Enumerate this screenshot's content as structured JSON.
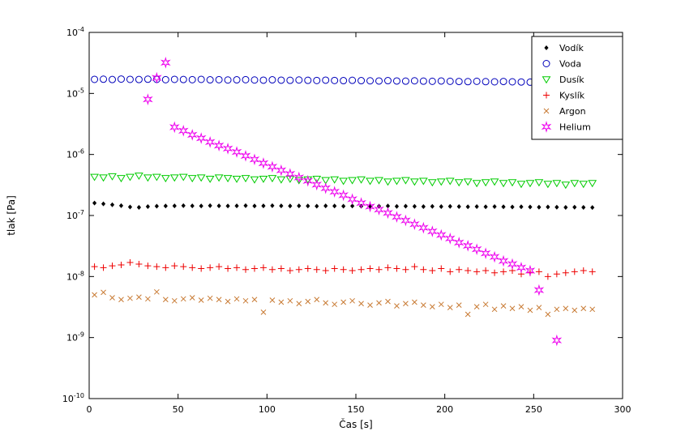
{
  "figure": {
    "background": "#ffffff",
    "border_color": "#000000"
  },
  "chart_data": {
    "type": "scatter",
    "title": "",
    "xlabel": "Čas [s]",
    "ylabel": "tlak [Pa]",
    "xlim": [
      0,
      300
    ],
    "ylim": [
      1e-10,
      0.0001
    ],
    "x_ticks": [
      0,
      50,
      100,
      150,
      200,
      250,
      300
    ],
    "y_tick_exponents": [
      -10,
      -9,
      -8,
      -7,
      -6,
      -5,
      -4
    ],
    "y_scale": "log",
    "grid": false,
    "legend_position": "top-right",
    "series": [
      {
        "name": "Vodík",
        "marker": "diamond",
        "color": "#000000",
        "x": [
          3,
          8,
          13,
          18,
          23,
          28,
          33,
          38,
          43,
          48,
          53,
          58,
          63,
          68,
          73,
          78,
          83,
          88,
          93,
          98,
          103,
          108,
          113,
          118,
          123,
          128,
          133,
          138,
          143,
          148,
          153,
          158,
          163,
          168,
          173,
          178,
          183,
          188,
          193,
          198,
          203,
          208,
          213,
          218,
          223,
          228,
          233,
          238,
          243,
          248,
          253,
          258,
          263,
          268,
          273,
          278,
          283
        ],
        "y": [
          1.6e-07,
          1.55e-07,
          1.5e-07,
          1.45e-07,
          1.38e-07,
          1.36e-07,
          1.4e-07,
          1.42e-07,
          1.43e-07,
          1.44e-07,
          1.45e-07,
          1.44e-07,
          1.43e-07,
          1.45e-07,
          1.44e-07,
          1.43e-07,
          1.44e-07,
          1.45e-07,
          1.43e-07,
          1.44e-07,
          1.45e-07,
          1.44e-07,
          1.43e-07,
          1.44e-07,
          1.43e-07,
          1.42e-07,
          1.44e-07,
          1.43e-07,
          1.42e-07,
          1.43e-07,
          1.42e-07,
          1.41e-07,
          1.42e-07,
          1.43e-07,
          1.41e-07,
          1.42e-07,
          1.41e-07,
          1.4e-07,
          1.41e-07,
          1.4e-07,
          1.41e-07,
          1.4e-07,
          1.39e-07,
          1.4e-07,
          1.39e-07,
          1.4e-07,
          1.39e-07,
          1.38e-07,
          1.39e-07,
          1.38e-07,
          1.37e-07,
          1.38e-07,
          1.37e-07,
          1.36e-07,
          1.37e-07,
          1.36e-07,
          1.35e-07
        ]
      },
      {
        "name": "Voda",
        "marker": "circle",
        "color": "#0000bb",
        "x": [
          3,
          8,
          13,
          18,
          23,
          28,
          33,
          38,
          43,
          48,
          53,
          58,
          63,
          68,
          73,
          78,
          83,
          88,
          93,
          98,
          103,
          108,
          113,
          118,
          123,
          128,
          133,
          138,
          143,
          148,
          153,
          158,
          163,
          168,
          173,
          178,
          183,
          188,
          193,
          198,
          203,
          208,
          213,
          218,
          223,
          228,
          233,
          238,
          243,
          248,
          253,
          258,
          263,
          268,
          273,
          278,
          283
        ],
        "y": [
          1.7e-05,
          1.71e-05,
          1.69e-05,
          1.72e-05,
          1.7e-05,
          1.69e-05,
          1.71e-05,
          1.7e-05,
          1.68e-05,
          1.7e-05,
          1.69e-05,
          1.68e-05,
          1.7e-05,
          1.67e-05,
          1.68e-05,
          1.66e-05,
          1.67e-05,
          1.68e-05,
          1.66e-05,
          1.65e-05,
          1.67e-05,
          1.65e-05,
          1.64e-05,
          1.66e-05,
          1.64e-05,
          1.63e-05,
          1.65e-05,
          1.63e-05,
          1.62e-05,
          1.64e-05,
          1.62e-05,
          1.61e-05,
          1.6e-05,
          1.62e-05,
          1.6e-05,
          1.59e-05,
          1.61e-05,
          1.59e-05,
          1.58e-05,
          1.6e-05,
          1.58e-05,
          1.57e-05,
          1.56e-05,
          1.58e-05,
          1.56e-05,
          1.55e-05,
          1.57e-05,
          1.55e-05,
          1.54e-05,
          1.53e-05,
          1.55e-05,
          1.53e-05,
          1.52e-05,
          1.54e-05,
          1.52e-05,
          1.51e-05,
          1.52e-05
        ]
      },
      {
        "name": "Dusík",
        "marker": "triangle-down",
        "color": "#00cc00",
        "x": [
          3,
          8,
          13,
          18,
          23,
          28,
          33,
          38,
          43,
          48,
          53,
          58,
          63,
          68,
          73,
          78,
          83,
          88,
          93,
          98,
          103,
          108,
          113,
          118,
          123,
          128,
          133,
          138,
          143,
          148,
          153,
          158,
          163,
          168,
          173,
          178,
          183,
          188,
          193,
          198,
          203,
          208,
          213,
          218,
          223,
          228,
          233,
          238,
          243,
          248,
          253,
          258,
          263,
          268,
          273,
          278,
          283
        ],
        "y": [
          4.3e-07,
          4.2e-07,
          4.4e-07,
          4.1e-07,
          4.3e-07,
          4.5e-07,
          4.2e-07,
          4.3e-07,
          4.1e-07,
          4.2e-07,
          4.3e-07,
          4.1e-07,
          4.2e-07,
          4e-07,
          4.2e-07,
          4.1e-07,
          4e-07,
          4.1e-07,
          3.9e-07,
          4e-07,
          4.1e-07,
          3.9e-07,
          4e-07,
          3.8e-07,
          3.9e-07,
          4e-07,
          3.8e-07,
          3.9e-07,
          3.7e-07,
          3.8e-07,
          3.9e-07,
          3.7e-07,
          3.8e-07,
          3.6e-07,
          3.7e-07,
          3.8e-07,
          3.6e-07,
          3.7e-07,
          3.5e-07,
          3.6e-07,
          3.7e-07,
          3.5e-07,
          3.6e-07,
          3.4e-07,
          3.5e-07,
          3.6e-07,
          3.4e-07,
          3.5e-07,
          3.3e-07,
          3.4e-07,
          3.5e-07,
          3.3e-07,
          3.4e-07,
          3.2e-07,
          3.4e-07,
          3.3e-07,
          3.4e-07
        ]
      },
      {
        "name": "Kyslík",
        "marker": "plus",
        "color": "#ee0000",
        "x": [
          3,
          8,
          13,
          18,
          23,
          28,
          33,
          38,
          43,
          48,
          53,
          58,
          63,
          68,
          73,
          78,
          83,
          88,
          93,
          98,
          103,
          108,
          113,
          118,
          123,
          128,
          133,
          138,
          143,
          148,
          153,
          158,
          163,
          168,
          173,
          178,
          183,
          188,
          193,
          198,
          203,
          208,
          213,
          218,
          223,
          228,
          233,
          238,
          243,
          248,
          253,
          258,
          263,
          268,
          273,
          278,
          283
        ],
        "y": [
          1.45e-08,
          1.4e-08,
          1.5e-08,
          1.55e-08,
          1.7e-08,
          1.6e-08,
          1.5e-08,
          1.45e-08,
          1.4e-08,
          1.5e-08,
          1.45e-08,
          1.4e-08,
          1.35e-08,
          1.4e-08,
          1.45e-08,
          1.35e-08,
          1.4e-08,
          1.3e-08,
          1.35e-08,
          1.4e-08,
          1.3e-08,
          1.35e-08,
          1.25e-08,
          1.3e-08,
          1.35e-08,
          1.3e-08,
          1.25e-08,
          1.35e-08,
          1.3e-08,
          1.25e-08,
          1.3e-08,
          1.35e-08,
          1.3e-08,
          1.4e-08,
          1.35e-08,
          1.3e-08,
          1.45e-08,
          1.3e-08,
          1.25e-08,
          1.35e-08,
          1.2e-08,
          1.3e-08,
          1.25e-08,
          1.2e-08,
          1.25e-08,
          1.15e-08,
          1.2e-08,
          1.25e-08,
          1.1e-08,
          1.15e-08,
          1.2e-08,
          1e-08,
          1.1e-08,
          1.15e-08,
          1.2e-08,
          1.25e-08,
          1.2e-08
        ]
      },
      {
        "name": "Argon",
        "marker": "x",
        "color": "#c87a33",
        "x": [
          3,
          8,
          13,
          18,
          23,
          28,
          33,
          38,
          43,
          48,
          53,
          58,
          63,
          68,
          73,
          78,
          83,
          88,
          93,
          98,
          103,
          108,
          113,
          118,
          123,
          128,
          133,
          138,
          143,
          148,
          153,
          158,
          163,
          168,
          173,
          178,
          183,
          188,
          193,
          198,
          203,
          208,
          213,
          218,
          223,
          228,
          233,
          238,
          243,
          248,
          253,
          258,
          263,
          268,
          273,
          278,
          283
        ],
        "y": [
          5e-09,
          5.5e-09,
          4.5e-09,
          4.2e-09,
          4.4e-09,
          4.6e-09,
          4.3e-09,
          5.6e-09,
          4.2e-09,
          4e-09,
          4.3e-09,
          4.5e-09,
          4.1e-09,
          4.4e-09,
          4.2e-09,
          3.9e-09,
          4.3e-09,
          4e-09,
          4.2e-09,
          2.6e-09,
          4.1e-09,
          3.8e-09,
          4e-09,
          3.6e-09,
          3.9e-09,
          4.2e-09,
          3.7e-09,
          3.5e-09,
          3.8e-09,
          4e-09,
          3.6e-09,
          3.4e-09,
          3.7e-09,
          3.9e-09,
          3.3e-09,
          3.6e-09,
          3.8e-09,
          3.4e-09,
          3.2e-09,
          3.5e-09,
          3.1e-09,
          3.4e-09,
          2.4e-09,
          3.2e-09,
          3.5e-09,
          2.9e-09,
          3.3e-09,
          3e-09,
          3.2e-09,
          2.8e-09,
          3.1e-09,
          2.4e-09,
          2.9e-09,
          3e-09,
          2.8e-09,
          3e-09,
          2.9e-09
        ]
      },
      {
        "name": "Helium",
        "marker": "hexagram",
        "color": "#ee00ee",
        "x": [
          33,
          38,
          43,
          48,
          53,
          58,
          63,
          68,
          73,
          78,
          83,
          88,
          93,
          98,
          103,
          108,
          113,
          118,
          123,
          128,
          133,
          138,
          143,
          148,
          153,
          158,
          163,
          168,
          173,
          178,
          183,
          188,
          193,
          198,
          203,
          208,
          213,
          218,
          223,
          228,
          233,
          238,
          243,
          248,
          253,
          263
        ],
        "y": [
          8e-06,
          1.8e-05,
          3.2e-05,
          2.8e-06,
          2.45e-06,
          2.1e-06,
          1.85e-06,
          1.6e-06,
          1.4e-06,
          1.25e-06,
          1.1e-06,
          9.5e-07,
          8.3e-07,
          7.2e-07,
          6.3e-07,
          5.5e-07,
          4.8e-07,
          4.2e-07,
          3.7e-07,
          3.2e-07,
          2.8e-07,
          2.45e-07,
          2.15e-07,
          1.85e-07,
          1.6e-07,
          1.4e-07,
          1.25e-07,
          1.1e-07,
          9.5e-08,
          8.3e-08,
          7.2e-08,
          6.3e-08,
          5.5e-08,
          4.8e-08,
          4.2e-08,
          3.6e-08,
          3.2e-08,
          2.8e-08,
          2.4e-08,
          2.1e-08,
          1.8e-08,
          1.6e-08,
          1.4e-08,
          1.25e-08,
          6e-09,
          9e-10
        ]
      }
    ]
  }
}
